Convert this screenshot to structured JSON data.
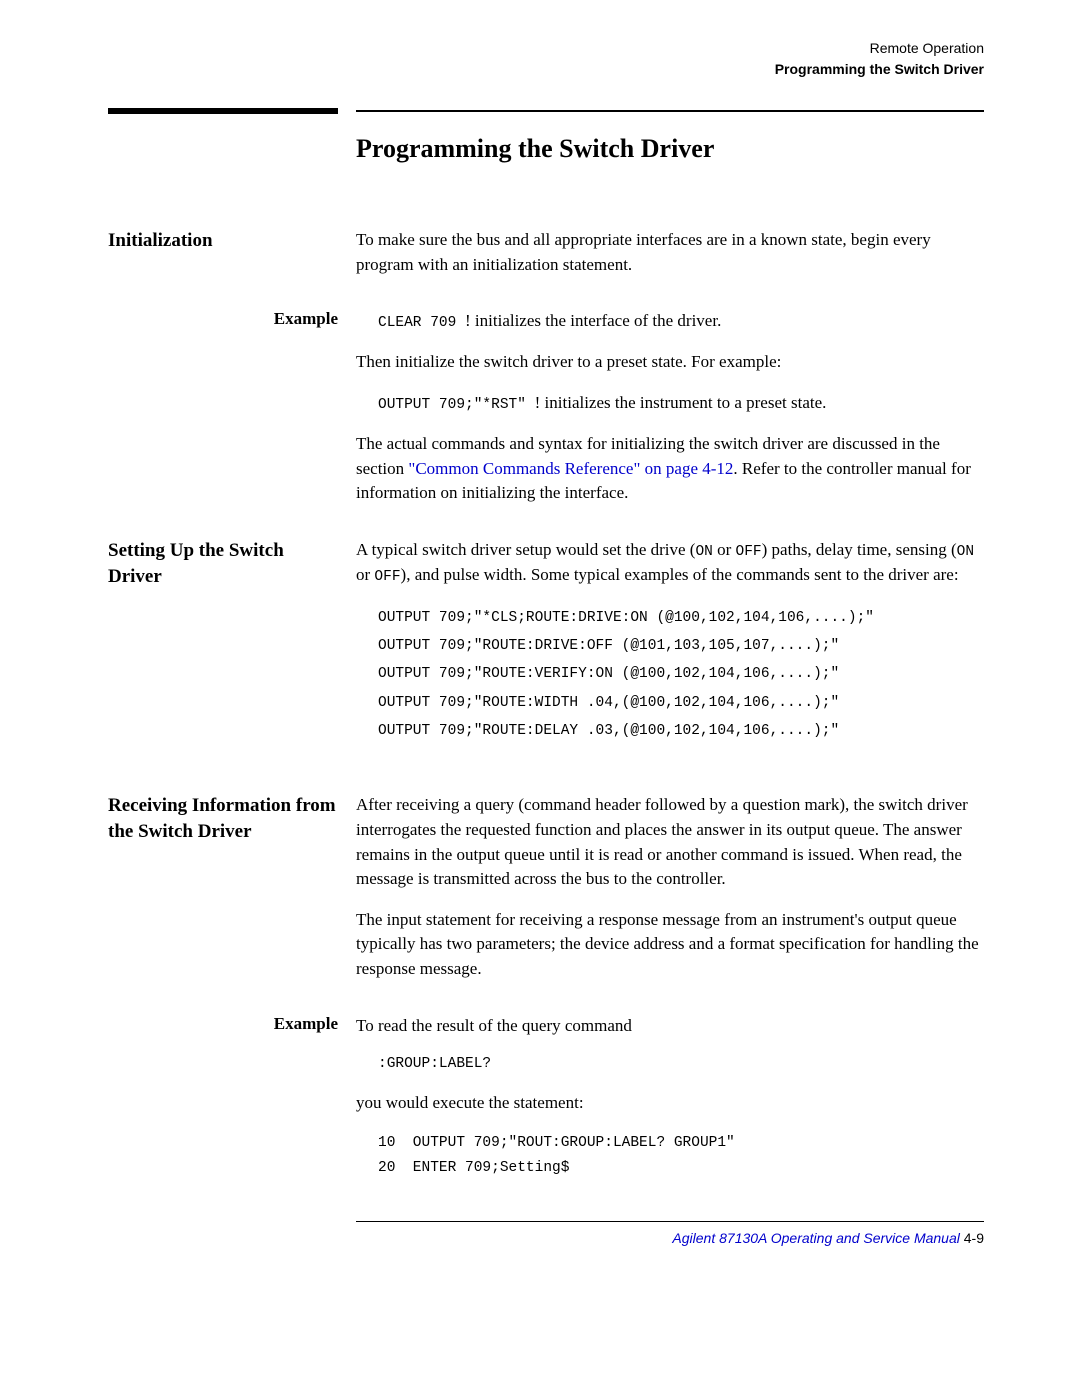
{
  "header": {
    "line1": "Remote Operation",
    "line2": "Programming the Switch Driver"
  },
  "title": "Programming the Switch Driver",
  "sections": {
    "init": {
      "heading": "Initialization",
      "body1": "To make sure the bus and all appropriate interfaces are in a known state, begin every program with an initialization statement."
    },
    "initExample": {
      "label": "Example",
      "code1a": "CLEAR 709 ",
      "code1b": "! initializes the interface of the driver.",
      "body2": "Then initialize the switch driver to a preset state. For example:",
      "code2a": "OUTPUT 709;\"*RST\" ",
      "code2b": "! initializes the instrument to a preset state.",
      "body3a": "The actual commands and syntax for initializing the switch driver are discussed in the section ",
      "link": "\"Common Commands Reference\" on page 4-12",
      "body3b": ". Refer to the controller manual for information on initializing the interface."
    },
    "setup": {
      "heading": "Setting Up the Switch Driver",
      "body1a": "A typical switch driver setup would set the drive (",
      "on": "ON",
      "or": " or ",
      "off": "OFF",
      "body1b": ") paths, delay time, sensing (",
      "body1c": "), and pulse width. Some typical examples of the commands sent to the driver are:",
      "codeLines": [
        "OUTPUT 709;\"*CLS;ROUTE:DRIVE:ON (@100,102,104,106,....);\"",
        "OUTPUT 709;\"ROUTE:DRIVE:OFF (@101,103,105,107,....);\"",
        "OUTPUT 709;\"ROUTE:VERIFY:ON (@100,102,104,106,....);\"",
        "OUTPUT 709;\"ROUTE:WIDTH .04,(@100,102,104,106,....);\"",
        "OUTPUT 709;\"ROUTE:DELAY .03,(@100,102,104,106,....);\""
      ]
    },
    "recv": {
      "heading": "Receiving Information from the Switch Driver",
      "body1": "After receiving a query (command header followed by a question mark), the switch driver interrogates the requested function and places the answer in its output queue. The answer remains in the output queue until it is read or another command is issued. When read, the message is transmitted across the bus to the controller.",
      "body2": "The input statement for receiving a response message from an instrument's output queue typically has two parameters; the device address and a format specification for handling the response message."
    },
    "recvExample": {
      "label": "Example",
      "body1": "To read the result of the query command",
      "code1": ":GROUP:LABEL?",
      "body2": "you would execute the statement:",
      "codeLines": [
        "10  OUTPUT 709;\"ROUT:GROUP:LABEL? GROUP1\"",
        "20  ENTER 709;Setting$"
      ]
    }
  },
  "footer": {
    "manual": "Agilent 87130A Operating and Service Manual",
    "page": "   4-9"
  }
}
